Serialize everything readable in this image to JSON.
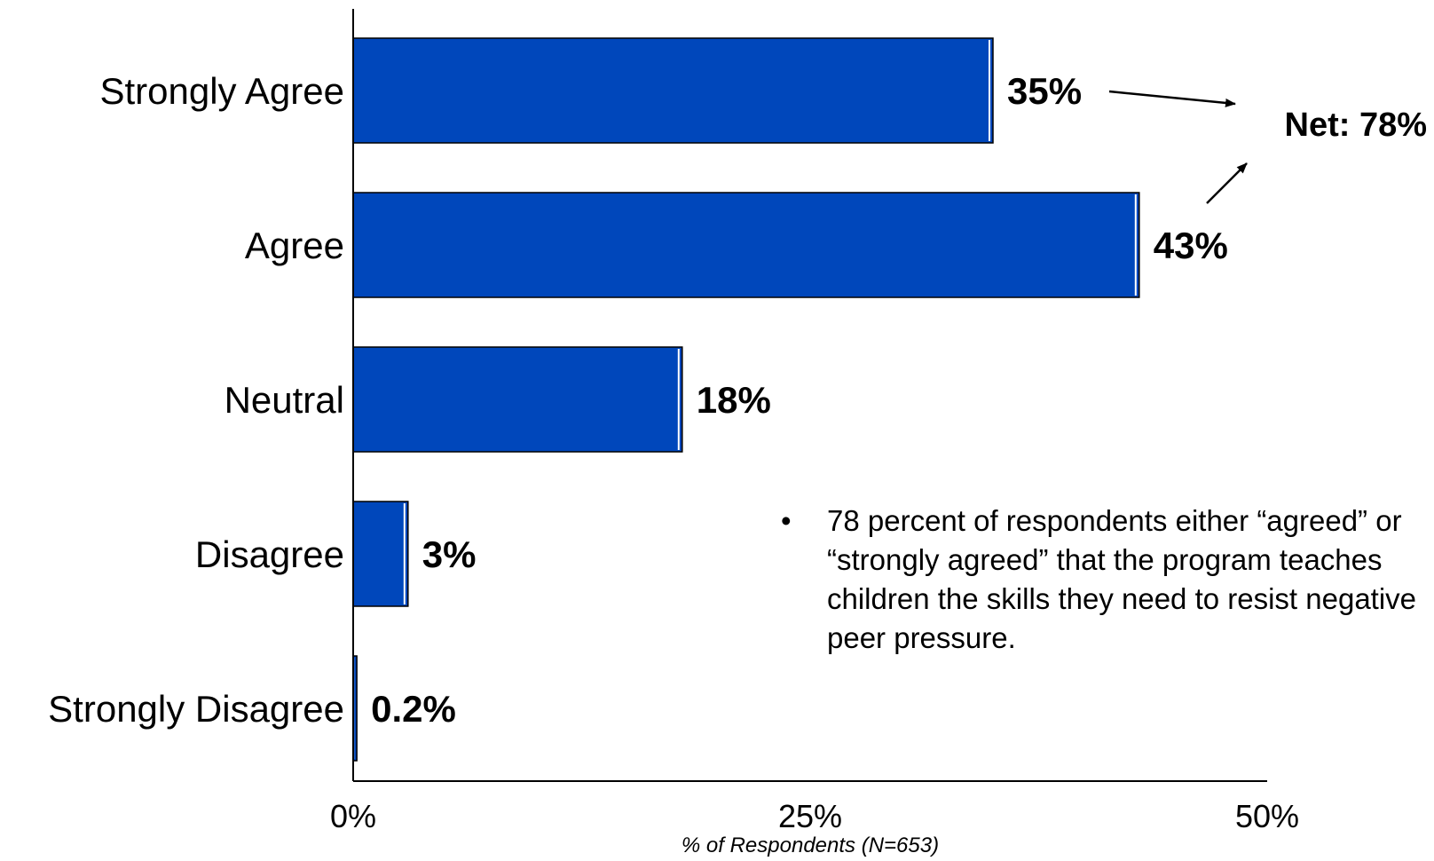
{
  "chart_data": {
    "type": "bar",
    "orientation": "horizontal",
    "categories": [
      "Strongly Agree",
      "Agree",
      "Neutral",
      "Disagree",
      "Strongly Disagree"
    ],
    "values": [
      35,
      43,
      18,
      3,
      0.2
    ],
    "value_labels": [
      "35%",
      "43%",
      "18%",
      "3%",
      "0.2%"
    ],
    "xlabel": "% of Respondents (N=653)",
    "xlim": [
      0,
      50
    ],
    "xticks": [
      0,
      25,
      50
    ],
    "xtick_labels": [
      "0%",
      "25%",
      "50%"
    ],
    "bar_color": "#0047BB",
    "grid": false,
    "annotation": {
      "net_label": "Net: 78%"
    }
  },
  "note": {
    "bullet": "•",
    "text": "78 percent of respondents either “agreed” or “strongly agreed” that the program teaches children the skills they need to resist negative peer pressure."
  }
}
